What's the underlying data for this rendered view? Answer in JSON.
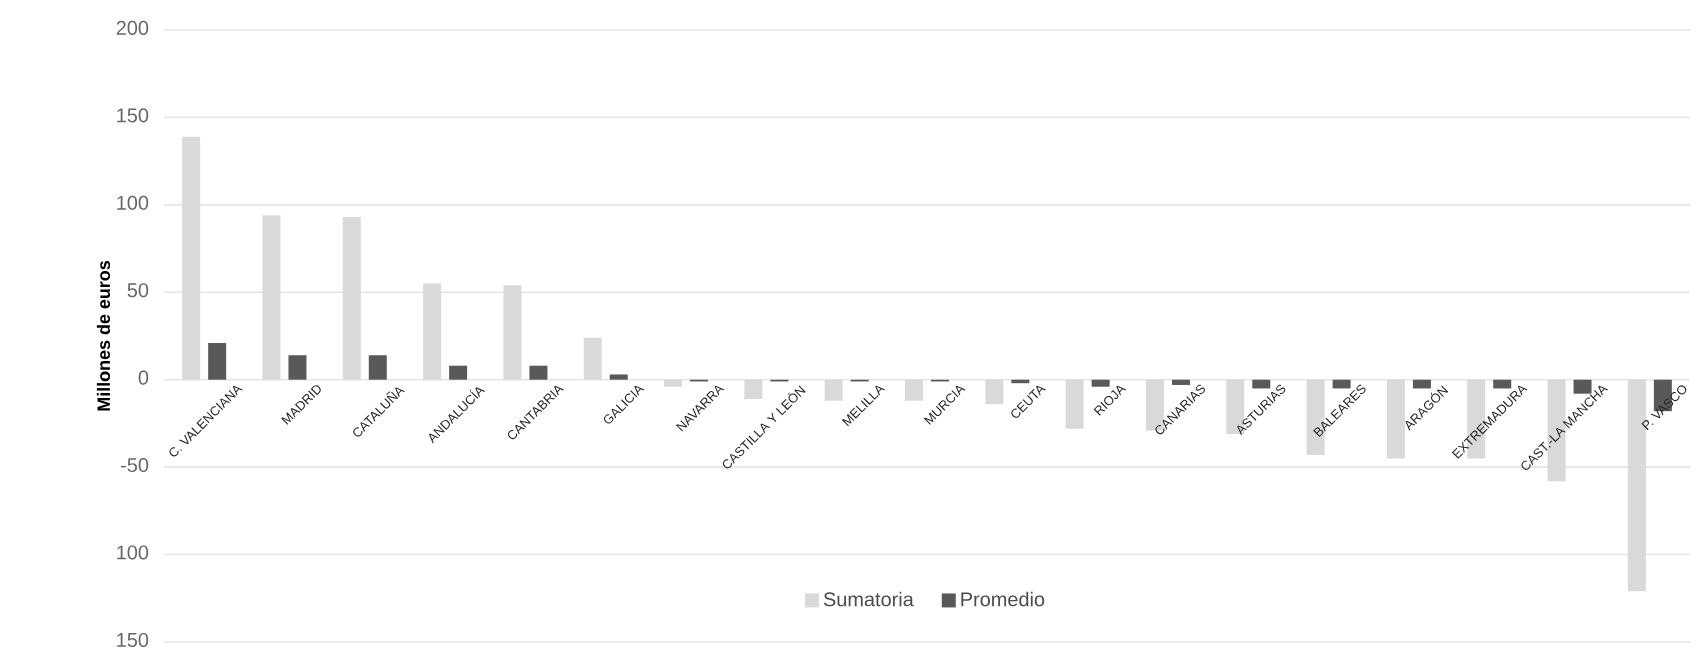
{
  "chart_data": {
    "type": "bar",
    "ylabel": "Millones de euros",
    "categories": [
      "C. VALENCIANA",
      "MADRID",
      "CATALUÑA",
      "ANDALUCÍA",
      "CANTABRIA",
      "GALICIA",
      "NAVARRA",
      "CASTILLA Y LEÓN",
      "MELILLA",
      "MURCIA",
      "CEUTA",
      "RIOJA",
      "CANARIAS",
      "ASTURIAS",
      "BALEARES",
      "ARAGÓN",
      "EXTREMADURA",
      "CAST.-LA MANCHA",
      "P. VASCO"
    ],
    "series": [
      {
        "name": "Sumatoria",
        "color": "#d9d9d9",
        "values": [
          139,
          94,
          93,
          55,
          54,
          24,
          -4,
          -11,
          -12,
          -12,
          -14,
          -28,
          -29,
          -31,
          -43,
          -45,
          -45,
          -58,
          -121
        ]
      },
      {
        "name": "Promedio",
        "color": "#595959",
        "values": [
          21,
          14,
          14,
          8,
          8,
          3,
          -1,
          -1,
          -1,
          -1,
          -2,
          -4,
          -3,
          -5,
          -5,
          -5,
          -5,
          -8,
          -18
        ]
      }
    ],
    "ylim": [
      -150,
      200
    ],
    "yticks": [
      {
        "value": -150,
        "label": "150"
      },
      {
        "value": -100,
        "label": "100"
      },
      -50,
      0,
      50,
      100,
      150,
      200
    ],
    "grid": "y",
    "legend": "bottom"
  }
}
